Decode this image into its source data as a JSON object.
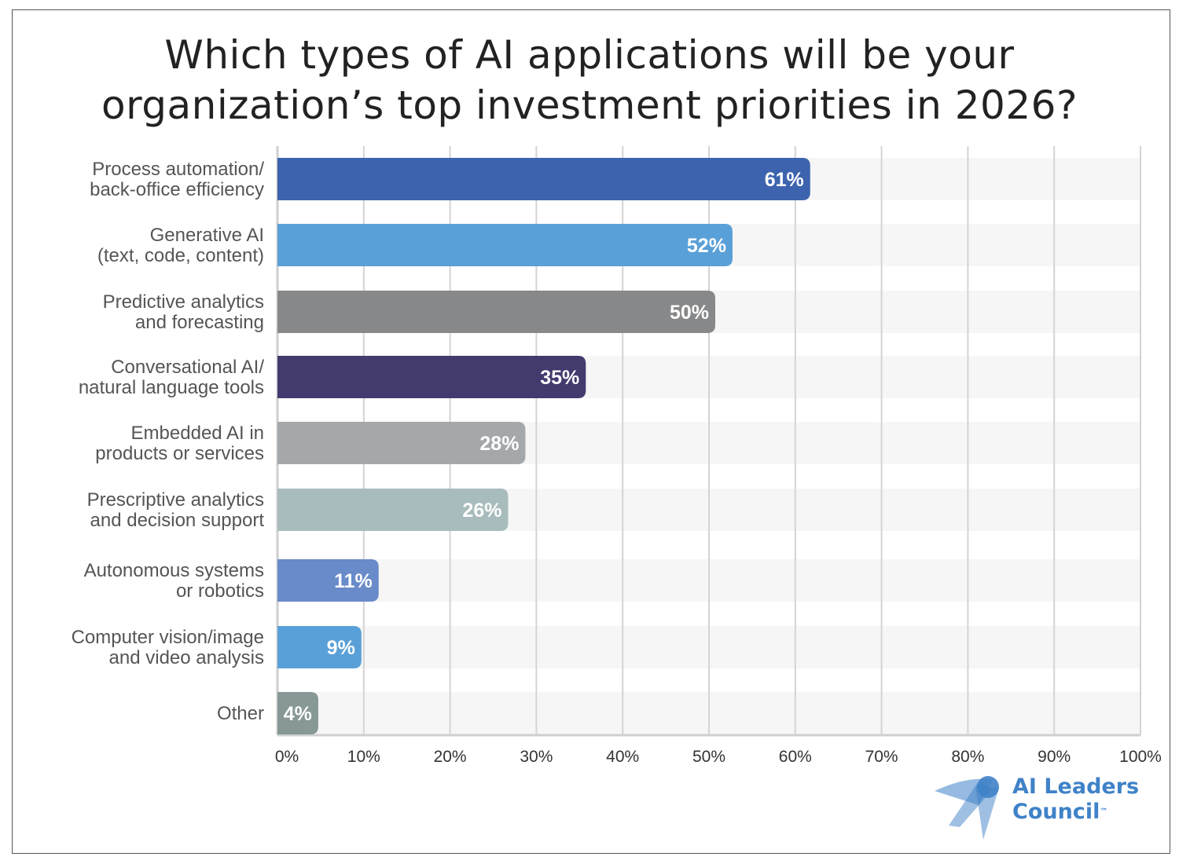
{
  "chart_data": {
    "type": "bar",
    "orientation": "horizontal",
    "title": "Which types of AI applications will be your organization’s top investment priorities in 2026?",
    "title_lines": [
      "Which types of AI applications will be your",
      "organization’s top investment priorities in 2026?"
    ],
    "categories": [
      [
        "Process automation/",
        "back-office efficiency"
      ],
      [
        "Generative AI",
        "(text, code, content)"
      ],
      [
        "Predictive analytics",
        "and forecasting"
      ],
      [
        "Conversational AI/",
        "natural language tools"
      ],
      [
        "Embedded AI in",
        "products or services"
      ],
      [
        "Prescriptive analytics",
        "and decision support"
      ],
      [
        "Autonomous systems",
        "or robotics"
      ],
      [
        "Computer vision/image",
        "and video analysis"
      ],
      [
        "Other"
      ]
    ],
    "values": [
      61,
      52,
      50,
      35,
      28,
      26,
      11,
      9,
      4
    ],
    "data_labels": [
      "61%",
      "52%",
      "50%",
      "35%",
      "28%",
      "26%",
      "11%",
      "9%",
      "4%"
    ],
    "colors": [
      "#3d63ae",
      "#5aa0d8",
      "#87888a",
      "#433a6e",
      "#a5a8aa",
      "#a9bcbd",
      "#6a8bc9",
      "#5aa0d8",
      "#879896"
    ],
    "xlim": [
      0,
      100
    ],
    "xticks": [
      "0%",
      "10%",
      "20%",
      "30%",
      "40%",
      "50%",
      "60%",
      "70%",
      "80%",
      "90%",
      "100%"
    ],
    "grid": true,
    "xlabel": "",
    "ylabel": ""
  },
  "logo": {
    "line1": "AI Leaders",
    "line2": "Council",
    "tm": "™",
    "color": "#3f82c8"
  }
}
